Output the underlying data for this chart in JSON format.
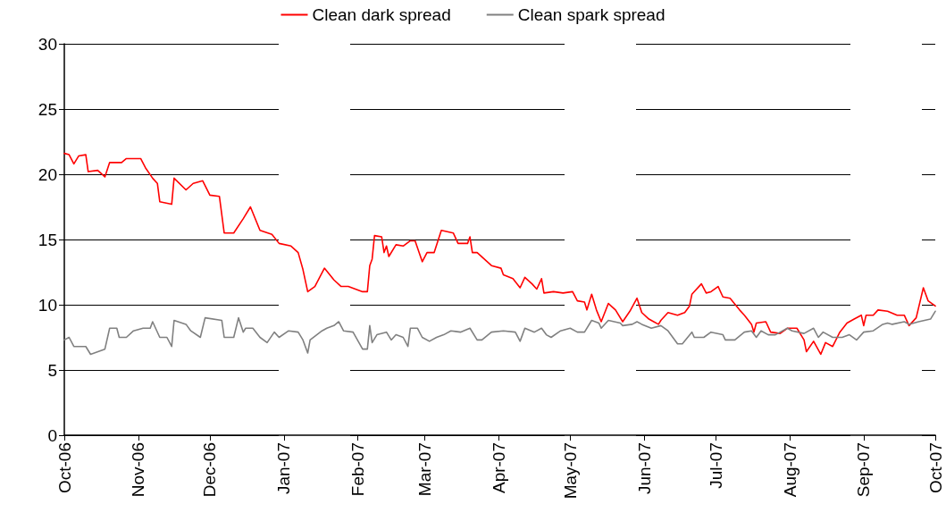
{
  "chart_data": {
    "type": "line",
    "legend": "top",
    "grid": "y",
    "marker": "none",
    "line_style": "solid",
    "xlim": [
      "2006-10-01",
      "2007-10-01"
    ],
    "xticks": [
      {
        "value": "2006-10-01",
        "label": "Oct-06"
      },
      {
        "value": "2006-11-01",
        "label": "Nov-06"
      },
      {
        "value": "2006-12-01",
        "label": "Dec-06"
      },
      {
        "value": "2007-01-01",
        "label": "Jan-07"
      },
      {
        "value": "2007-02-01",
        "label": "Feb-07"
      },
      {
        "value": "2007-03-01",
        "label": "Mar-07"
      },
      {
        "value": "2007-04-01",
        "label": "Apr-07"
      },
      {
        "value": "2007-05-01",
        "label": "May-07"
      },
      {
        "value": "2007-06-01",
        "label": "Jun-07"
      },
      {
        "value": "2007-07-01",
        "label": "Jul-07"
      },
      {
        "value": "2007-08-01",
        "label": "Aug-07"
      },
      {
        "value": "2007-09-01",
        "label": "Sep-07"
      },
      {
        "value": "2007-10-01",
        "label": "Oct-07"
      }
    ],
    "ylim": [
      0,
      30
    ],
    "yticks": [
      0,
      5,
      10,
      15,
      20,
      25,
      30
    ],
    "series": [
      {
        "name": "Clean dark spread",
        "color": "#ff0000",
        "x": [
          "2006-10-01",
          "2006-10-03",
          "2006-10-05",
          "2006-10-07",
          "2006-10-10",
          "2006-10-11",
          "2006-10-15",
          "2006-10-18",
          "2006-10-20",
          "2006-10-25",
          "2006-10-27",
          "2006-11-02",
          "2006-11-04",
          "2006-11-07",
          "2006-11-09",
          "2006-11-10",
          "2006-11-15",
          "2006-11-16",
          "2006-11-21",
          "2006-11-24",
          "2006-11-28",
          "2006-12-01",
          "2006-12-05",
          "2006-12-07",
          "2006-12-11",
          "2006-12-15",
          "2006-12-18",
          "2006-12-22",
          "2006-12-27",
          "2006-12-30",
          "2007-01-04",
          "2007-01-07",
          "2007-01-09",
          "2007-01-11",
          "2007-01-14",
          "2007-01-18",
          "2007-01-22",
          "2007-01-25",
          "2007-01-28",
          "2007-01-31",
          "2007-02-03",
          "2007-02-05",
          "2007-02-06",
          "2007-02-07",
          "2007-02-08",
          "2007-02-11",
          "2007-02-12",
          "2007-02-13",
          "2007-02-14",
          "2007-02-17",
          "2007-02-20",
          "2007-02-23",
          "2007-02-25",
          "2007-02-28",
          "2007-03-02",
          "2007-03-05",
          "2007-03-08",
          "2007-03-13",
          "2007-03-15",
          "2007-03-19",
          "2007-03-20",
          "2007-03-21",
          "2007-03-23",
          "2007-03-29",
          "2007-04-02",
          "2007-04-03",
          "2007-04-07",
          "2007-04-10",
          "2007-04-12",
          "2007-04-15",
          "2007-04-17",
          "2007-04-19",
          "2007-04-20",
          "2007-04-24",
          "2007-04-28",
          "2007-05-02",
          "2007-05-04",
          "2007-05-07",
          "2007-05-08",
          "2007-05-10",
          "2007-05-12",
          "2007-05-14",
          "2007-05-17",
          "2007-05-20",
          "2007-05-23",
          "2007-05-26",
          "2007-05-29",
          "2007-05-31",
          "2007-06-03",
          "2007-06-05",
          "2007-06-07",
          "2007-06-08",
          "2007-06-11",
          "2007-06-15",
          "2007-06-18",
          "2007-06-20",
          "2007-06-21",
          "2007-06-25",
          "2007-06-27",
          "2007-06-29",
          "2007-07-02",
          "2007-07-04",
          "2007-07-07",
          "2007-07-11",
          "2007-07-13",
          "2007-07-16",
          "2007-07-17",
          "2007-07-18",
          "2007-07-22",
          "2007-07-24",
          "2007-07-28",
          "2007-07-31",
          "2007-08-04",
          "2007-08-07",
          "2007-08-08",
          "2007-08-11",
          "2007-08-14",
          "2007-08-16",
          "2007-08-19",
          "2007-08-22",
          "2007-08-25",
          "2007-08-28",
          "2007-08-31",
          "2007-09-01",
          "2007-09-02",
          "2007-09-05",
          "2007-09-07",
          "2007-09-11",
          "2007-09-15",
          "2007-09-18",
          "2007-09-20",
          "2007-09-23",
          "2007-09-26",
          "2007-09-28",
          "2007-10-01"
        ],
        "values": [
          21.6,
          21.5,
          20.8,
          21.4,
          21.5,
          20.2,
          20.3,
          19.8,
          20.9,
          20.9,
          21.2,
          21.2,
          20.5,
          19.7,
          19.3,
          17.9,
          17.7,
          19.7,
          18.8,
          19.3,
          19.5,
          18.4,
          18.3,
          15.5,
          15.5,
          16.6,
          17.5,
          15.7,
          15.4,
          14.7,
          14.5,
          14.0,
          12.7,
          11.0,
          11.4,
          12.8,
          11.9,
          11.4,
          11.4,
          11.2,
          11.0,
          11.0,
          13.0,
          13.5,
          15.3,
          15.2,
          14.0,
          14.5,
          13.7,
          14.6,
          14.5,
          14.9,
          14.9,
          13.3,
          14.0,
          14.0,
          15.7,
          15.5,
          14.7,
          14.7,
          15.2,
          14.0,
          14.0,
          13.0,
          12.8,
          12.3,
          12.0,
          11.3,
          12.1,
          11.6,
          11.2,
          12.0,
          10.9,
          11.0,
          10.9,
          11.0,
          10.3,
          10.2,
          9.6,
          10.8,
          9.6,
          8.7,
          10.1,
          9.6,
          8.7,
          9.5,
          10.5,
          9.4,
          8.9,
          8.7,
          8.5,
          8.8,
          9.4,
          9.2,
          9.4,
          9.9,
          10.8,
          11.6,
          10.9,
          11.0,
          11.4,
          10.6,
          10.5,
          9.6,
          9.2,
          8.5,
          7.9,
          8.6,
          8.7,
          7.9,
          7.8,
          8.2,
          8.2,
          7.3,
          6.4,
          7.2,
          6.2,
          7.1,
          6.8,
          7.9,
          8.6,
          8.9,
          9.2,
          8.4,
          9.2,
          9.2,
          9.6,
          9.5,
          9.2,
          9.2,
          8.4,
          9.0,
          11.3,
          10.3,
          9.9
        ]
      },
      {
        "name": "Clean spark spread",
        "color": "#808080",
        "x": [
          "2006-10-01",
          "2006-10-03",
          "2006-10-05",
          "2006-10-10",
          "2006-10-12",
          "2006-10-18",
          "2006-10-20",
          "2006-10-23",
          "2006-10-24",
          "2006-10-27",
          "2006-10-30",
          "2006-11-03",
          "2006-11-06",
          "2006-11-07",
          "2006-11-10",
          "2006-11-13",
          "2006-11-15",
          "2006-11-16",
          "2006-11-21",
          "2006-11-23",
          "2006-11-27",
          "2006-11-29",
          "2006-12-06",
          "2006-12-07",
          "2006-12-11",
          "2006-12-13",
          "2006-12-15",
          "2006-12-16",
          "2006-12-19",
          "2006-12-22",
          "2006-12-25",
          "2006-12-28",
          "2006-12-30",
          "2007-01-03",
          "2007-01-07",
          "2007-01-09",
          "2007-01-11",
          "2007-01-12",
          "2007-01-17",
          "2007-01-19",
          "2007-01-22",
          "2007-01-24",
          "2007-01-26",
          "2007-01-30",
          "2007-02-03",
          "2007-02-05",
          "2007-02-06",
          "2007-02-07",
          "2007-02-09",
          "2007-02-13",
          "2007-02-15",
          "2007-02-17",
          "2007-02-20",
          "2007-02-22",
          "2007-02-23",
          "2007-02-26",
          "2007-02-28",
          "2007-03-03",
          "2007-03-06",
          "2007-03-09",
          "2007-03-12",
          "2007-03-16",
          "2007-03-20",
          "2007-03-23",
          "2007-03-25",
          "2007-03-29",
          "2007-04-03",
          "2007-04-08",
          "2007-04-10",
          "2007-04-12",
          "2007-04-16",
          "2007-04-19",
          "2007-04-21",
          "2007-04-23",
          "2007-04-27",
          "2007-05-01",
          "2007-05-04",
          "2007-05-07",
          "2007-05-10",
          "2007-05-13",
          "2007-05-14",
          "2007-05-17",
          "2007-05-22",
          "2007-05-23",
          "2007-05-27",
          "2007-05-29",
          "2007-05-31",
          "2007-06-04",
          "2007-06-08",
          "2007-06-11",
          "2007-06-15",
          "2007-06-17",
          "2007-06-21",
          "2007-06-22",
          "2007-06-26",
          "2007-06-29",
          "2007-07-04",
          "2007-07-05",
          "2007-07-09",
          "2007-07-13",
          "2007-07-16",
          "2007-07-18",
          "2007-07-20",
          "2007-07-23",
          "2007-07-26",
          "2007-07-31",
          "2007-08-02",
          "2007-08-07",
          "2007-08-11",
          "2007-08-13",
          "2007-08-15",
          "2007-08-19",
          "2007-08-23",
          "2007-08-26",
          "2007-08-29",
          "2007-09-01",
          "2007-09-05",
          "2007-09-09",
          "2007-09-11",
          "2007-09-13",
          "2007-09-18",
          "2007-09-20",
          "2007-09-24",
          "2007-09-29",
          "2007-10-01"
        ],
        "values": [
          7.3,
          7.5,
          6.8,
          6.8,
          6.2,
          6.6,
          8.2,
          8.2,
          7.5,
          7.5,
          8.0,
          8.2,
          8.2,
          8.7,
          7.5,
          7.5,
          6.8,
          8.8,
          8.5,
          8.0,
          7.5,
          9.0,
          8.8,
          7.5,
          7.5,
          9.0,
          7.9,
          8.2,
          8.2,
          7.5,
          7.1,
          7.9,
          7.5,
          8.0,
          7.9,
          7.3,
          6.3,
          7.3,
          8.0,
          8.2,
          8.4,
          8.7,
          8.0,
          7.9,
          6.6,
          6.6,
          8.4,
          7.1,
          7.7,
          7.9,
          7.3,
          7.7,
          7.5,
          6.8,
          8.2,
          8.2,
          7.5,
          7.2,
          7.5,
          7.7,
          8.0,
          7.9,
          8.2,
          7.3,
          7.3,
          7.9,
          8.0,
          7.9,
          7.2,
          8.2,
          7.9,
          8.2,
          7.7,
          7.5,
          8.0,
          8.2,
          7.9,
          7.9,
          8.8,
          8.6,
          8.2,
          8.8,
          8.6,
          8.4,
          8.5,
          8.7,
          8.5,
          8.2,
          8.4,
          8.0,
          7.0,
          7.0,
          7.9,
          7.5,
          7.5,
          7.9,
          7.7,
          7.3,
          7.3,
          7.9,
          8.0,
          7.5,
          8.0,
          7.7,
          7.7,
          8.2,
          8.0,
          7.8,
          8.2,
          7.5,
          7.9,
          7.5,
          7.5,
          7.7,
          7.3,
          7.9,
          8.0,
          8.5,
          8.6,
          8.5,
          8.7,
          8.5,
          8.7,
          8.9,
          9.5
        ]
      }
    ]
  }
}
